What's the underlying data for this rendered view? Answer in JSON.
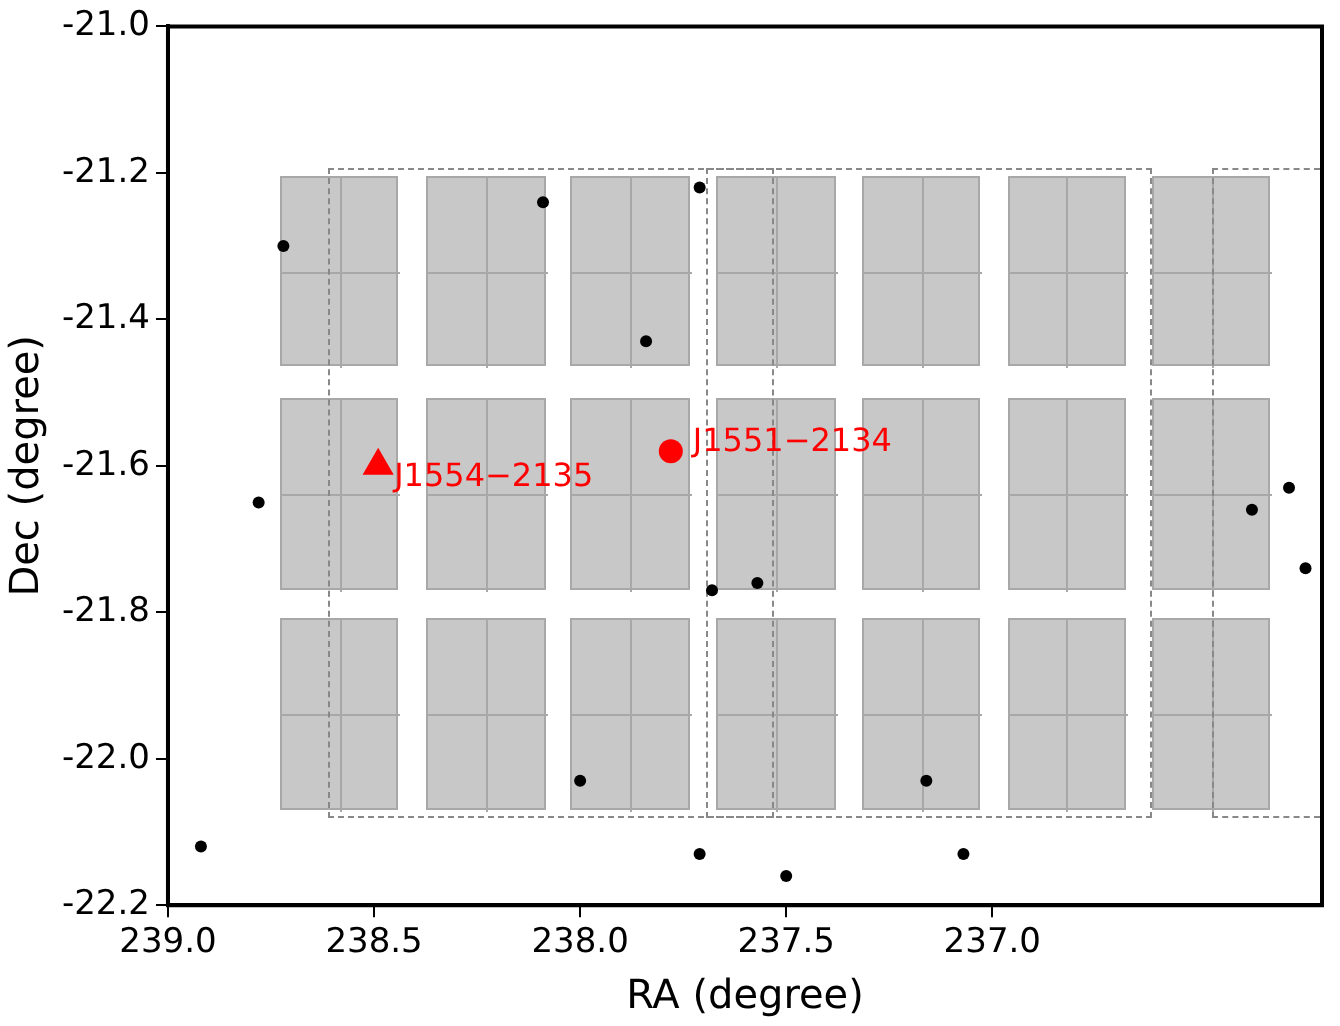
{
  "chart_data": {
    "type": "scatter",
    "xlabel": "RA (degree)",
    "ylabel": "Dec (degree)",
    "xlim": [
      239.0,
      236.2
    ],
    "ylim": [
      -22.2,
      -21.0
    ],
    "xticks": [
      {
        "value": 239.0,
        "label": "239.0"
      },
      237.5,
      {
        "value": 238.0,
        "label": "238.0"
      },
      238.5,
      {
        "value": 237.0,
        "label": "237.0"
      }
    ],
    "yticks": [
      {
        "value": -21.0,
        "label": "-21.0"
      },
      -21.2,
      -21.4,
      -21.6,
      -21.8,
      {
        "value": -22.0,
        "label": "-22.0"
      },
      -22.2
    ],
    "grid": false,
    "legend": false,
    "series": [
      {
        "color": "#000000",
        "marker": "circle",
        "x": [
          238.72,
          238.09,
          237.71,
          237.84,
          238.78,
          237.68,
          237.57,
          238.0,
          237.71,
          237.5,
          237.16,
          237.07,
          238.92,
          236.37,
          236.28,
          236.24
        ],
        "values": [
          -21.3,
          -21.24,
          -21.22,
          -21.43,
          -21.65,
          -21.77,
          -21.76,
          -22.03,
          -22.13,
          -22.16,
          -22.03,
          -22.13,
          -22.12,
          -21.66,
          -21.63,
          -21.74
        ]
      },
      {
        "name": "J1554−2135",
        "color": "#ff0000",
        "marker": "triangle",
        "x": [
          238.49
        ],
        "values": [
          -21.6
        ]
      },
      {
        "name": "J1551−2134",
        "color": "#ff0000",
        "marker": "circle",
        "x": [
          237.78
        ],
        "values": [
          -21.58
        ]
      }
    ]
  }
}
